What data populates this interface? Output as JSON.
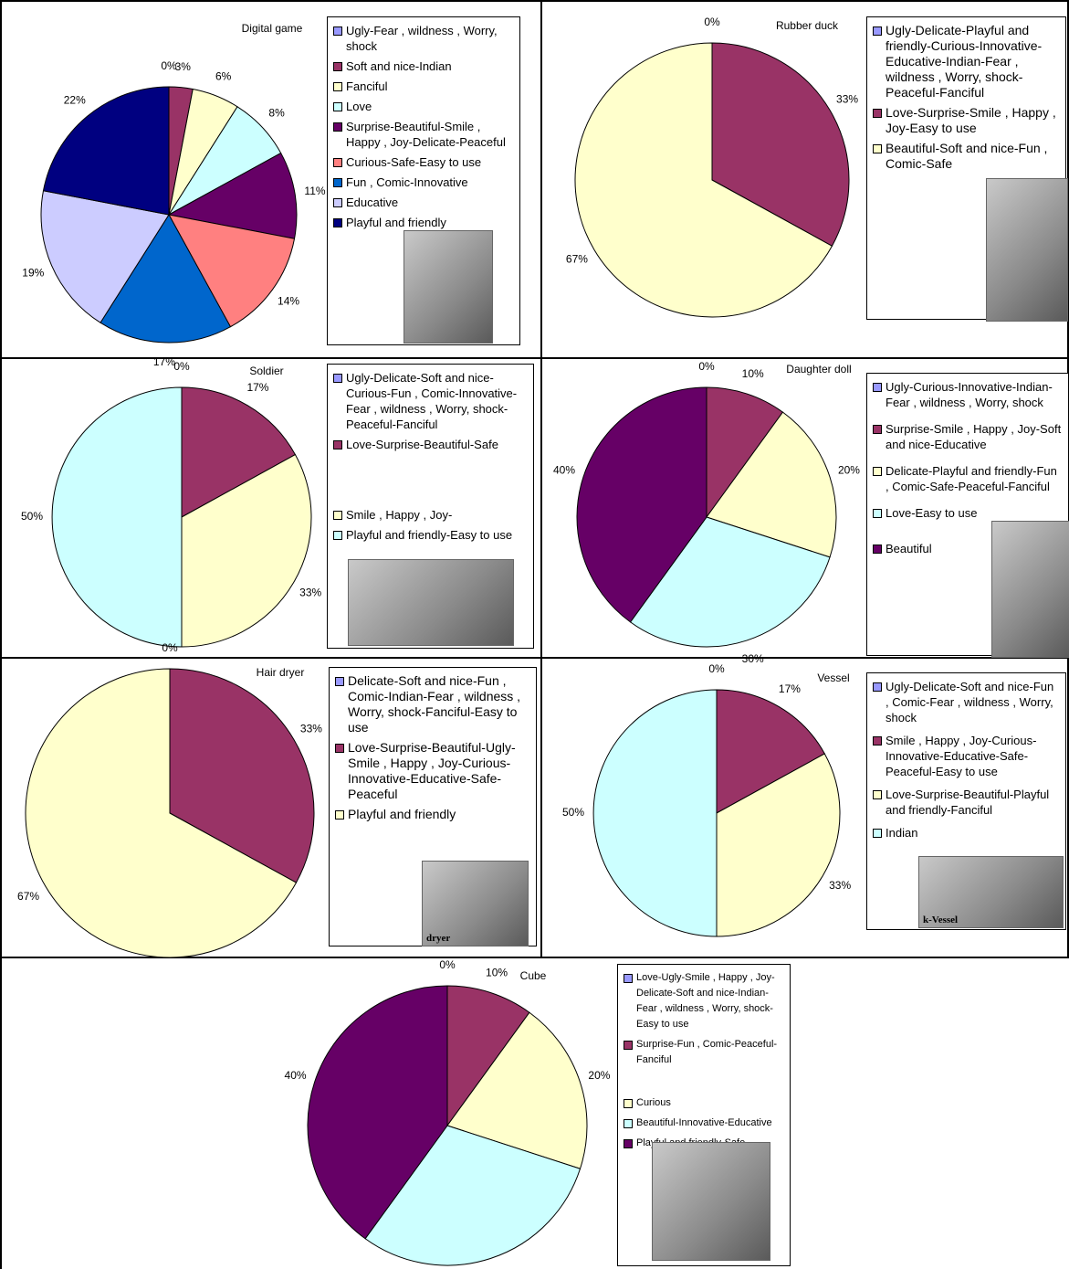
{
  "chart_data": [
    {
      "type": "pie",
      "title": "Digital game",
      "categories": [
        "Ugly-Fear , wildness , Worry, shock",
        "Soft and nice-Indian",
        "Fanciful",
        "Love",
        "Surprise-Beautiful-Smile , Happy , Joy-Delicate-Peaceful",
        "Curious-Safe-Easy to use",
        "Fun , Comic-Innovative",
        "Educative",
        "Playful and friendly"
      ],
      "values": [
        0,
        3,
        6,
        8,
        11,
        14,
        17,
        19,
        22
      ],
      "value_labels": [
        "0%",
        "3%",
        "6%",
        "8%",
        "11%",
        "14%",
        "17%",
        "19%",
        "22%"
      ],
      "colors": [
        "#9999ff",
        "#993366",
        "#ffffcc",
        "#ccffff",
        "#660066",
        "#ff8080",
        "#0066cc",
        "#ccccff",
        "#000080"
      ]
    },
    {
      "type": "pie",
      "title": "Rubber duck",
      "categories": [
        "Ugly-Delicate-Playful and friendly-Curious-Innovative-Educative-Indian-Fear , wildness , Worry, shock-Peaceful-Fanciful",
        "Love-Surprise-Smile , Happy , Joy-Easy to use",
        "Beautiful-Soft and nice-Fun , Comic-Safe"
      ],
      "values": [
        0,
        33,
        67
      ],
      "value_labels": [
        "0%",
        "33%",
        "67%"
      ],
      "colors": [
        "#9999ff",
        "#993366",
        "#ffffcc"
      ]
    },
    {
      "type": "pie",
      "title": "Soldier",
      "categories": [
        "Ugly-Delicate-Soft and nice-Curious-Fun , Comic-Innovative-Fear , wildness , Worry, shock-Peaceful-Fanciful",
        "Love-Surprise-Beautiful-Safe",
        "Smile , Happy , Joy-",
        "Playful and friendly-Easy to use"
      ],
      "values": [
        0,
        17,
        33,
        50
      ],
      "value_labels": [
        "0%",
        "17%",
        "33%",
        "50%"
      ],
      "colors": [
        "#9999ff",
        "#993366",
        "#ffffcc",
        "#ccffff"
      ]
    },
    {
      "type": "pie",
      "title": "Daughter doll",
      "categories": [
        "Ugly-Curious-Innovative-Indian-Fear , wildness , Worry, shock",
        "Surprise-Smile , Happy , Joy-Soft and nice-Educative",
        "Delicate-Playful and friendly-Fun , Comic-Safe-Peaceful-Fanciful",
        "Love-Easy to use",
        "Beautiful"
      ],
      "values": [
        0,
        10,
        20,
        30,
        40
      ],
      "value_labels": [
        "0%",
        "10%",
        "20%",
        "30%",
        "40%"
      ],
      "colors": [
        "#9999ff",
        "#993366",
        "#ffffcc",
        "#ccffff",
        "#660066"
      ]
    },
    {
      "type": "pie",
      "title": "Hair dryer",
      "categories": [
        "Delicate-Soft and nice-Fun , Comic-Indian-Fear , wildness , Worry, shock-Fanciful-Easy to use",
        "Love-Surprise-Beautiful-Ugly-Smile , Happy , Joy-Curious-Innovative-Educative-Safe-Peaceful",
        "Playful and friendly"
      ],
      "values": [
        0,
        33,
        67
      ],
      "value_labels": [
        "0%",
        "33%",
        "67%"
      ],
      "colors": [
        "#9999ff",
        "#993366",
        "#ffffcc"
      ],
      "photo_text": "dryer"
    },
    {
      "type": "pie",
      "title": "Vessel",
      "categories": [
        "Ugly-Delicate-Soft and nice-Fun , Comic-Fear , wildness , Worry, shock",
        "Smile , Happy , Joy-Curious-Innovative-Educative-Safe-Peaceful-Easy to use",
        "Love-Surprise-Beautiful-Playful and friendly-Fanciful",
        "Indian"
      ],
      "values": [
        0,
        17,
        33,
        50
      ],
      "value_labels": [
        "0%",
        "17%",
        "33%",
        "50%"
      ],
      "colors": [
        "#9999ff",
        "#993366",
        "#ffffcc",
        "#ccffff"
      ],
      "photo_text": "k-Vessel"
    },
    {
      "type": "pie",
      "title": "Cube",
      "categories": [
        "Love-Ugly-Smile , Happy , Joy-Delicate-Soft and nice-Indian-Fear , wildness , Worry, shock-Easy to use",
        "Surprise-Fun , Comic-Peaceful-Fanciful",
        "Curious",
        "Beautiful-Innovative-Educative",
        "Playful and friendly-Safe"
      ],
      "values": [
        0,
        10,
        20,
        30,
        40
      ],
      "value_labels": [
        "0%",
        "10%",
        "20%",
        "30%",
        "40%"
      ],
      "colors": [
        "#9999ff",
        "#993366",
        "#ffffcc",
        "#ccffff",
        "#660066"
      ]
    }
  ]
}
